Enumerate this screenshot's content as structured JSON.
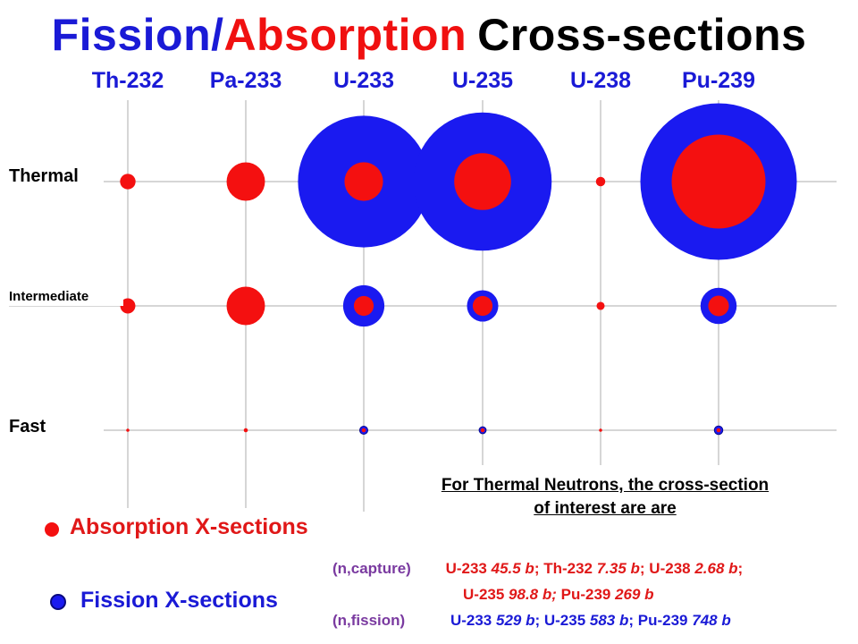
{
  "title": {
    "part1": "Fission/",
    "part2": "Absorption",
    "part3": "Cross-sections"
  },
  "colors": {
    "absorption": "#f41010",
    "fission": "#1a1af0",
    "title_blue": "#1a1ad6",
    "title_red": "#f01010",
    "grid": "#c8c8c8"
  },
  "chart_data": {
    "type": "scatter",
    "encoding": "bubble",
    "x": [
      "Th-232",
      "Pa-233",
      "U-233",
      "U-235",
      "U-238",
      "Pu-239"
    ],
    "y": [
      "Thermal",
      "Intermediate",
      "Fast"
    ],
    "series": [
      {
        "name": "Absorption X-sections",
        "color": "#f41010",
        "values": [
          [
            7.35,
            45,
            45.5,
            98.8,
            2.68,
            269
          ],
          [
            7,
            45,
            12,
            12,
            2,
            13
          ],
          [
            0.3,
            0.5,
            0.5,
            0.5,
            0.3,
            0.5
          ]
        ]
      },
      {
        "name": "Fission X-sections",
        "color": "#1a1af0",
        "values": [
          [
            0,
            0,
            529,
            583,
            0,
            748
          ],
          [
            0,
            0,
            52,
            30,
            0,
            40
          ],
          [
            0,
            0,
            2,
            1.5,
            0,
            2.2
          ]
        ]
      }
    ]
  },
  "note": {
    "line1": "For Thermal Neutrons, the cross-section",
    "line2": "of interest are are"
  },
  "legend": {
    "absorption_label": "Absorption X-sections",
    "fission_label": "Fission X-sections"
  },
  "values_text": {
    "capture_label": "(n,capture)",
    "capture_line1": [
      {
        "iso": "U-233 ",
        "val": "45.5 b"
      },
      {
        "iso": "; Th-232  ",
        "val": "7.35 b"
      },
      {
        "iso": "; U-238 ",
        "val": "2.68 b"
      },
      {
        "iso": ";",
        "val": ""
      }
    ],
    "capture_line2": [
      {
        "iso": "U-235  ",
        "val": "98.8 b;"
      },
      {
        "iso": " Pu-239 ",
        "val": "269 b"
      }
    ],
    "fission_label": "(n,fission)",
    "fission_line": [
      {
        "iso": "U-233  ",
        "val": "529 b"
      },
      {
        "iso": ";   U-235 ",
        "val": "583 b"
      },
      {
        "iso": ";  Pu-239  ",
        "val": "748 b"
      }
    ]
  }
}
